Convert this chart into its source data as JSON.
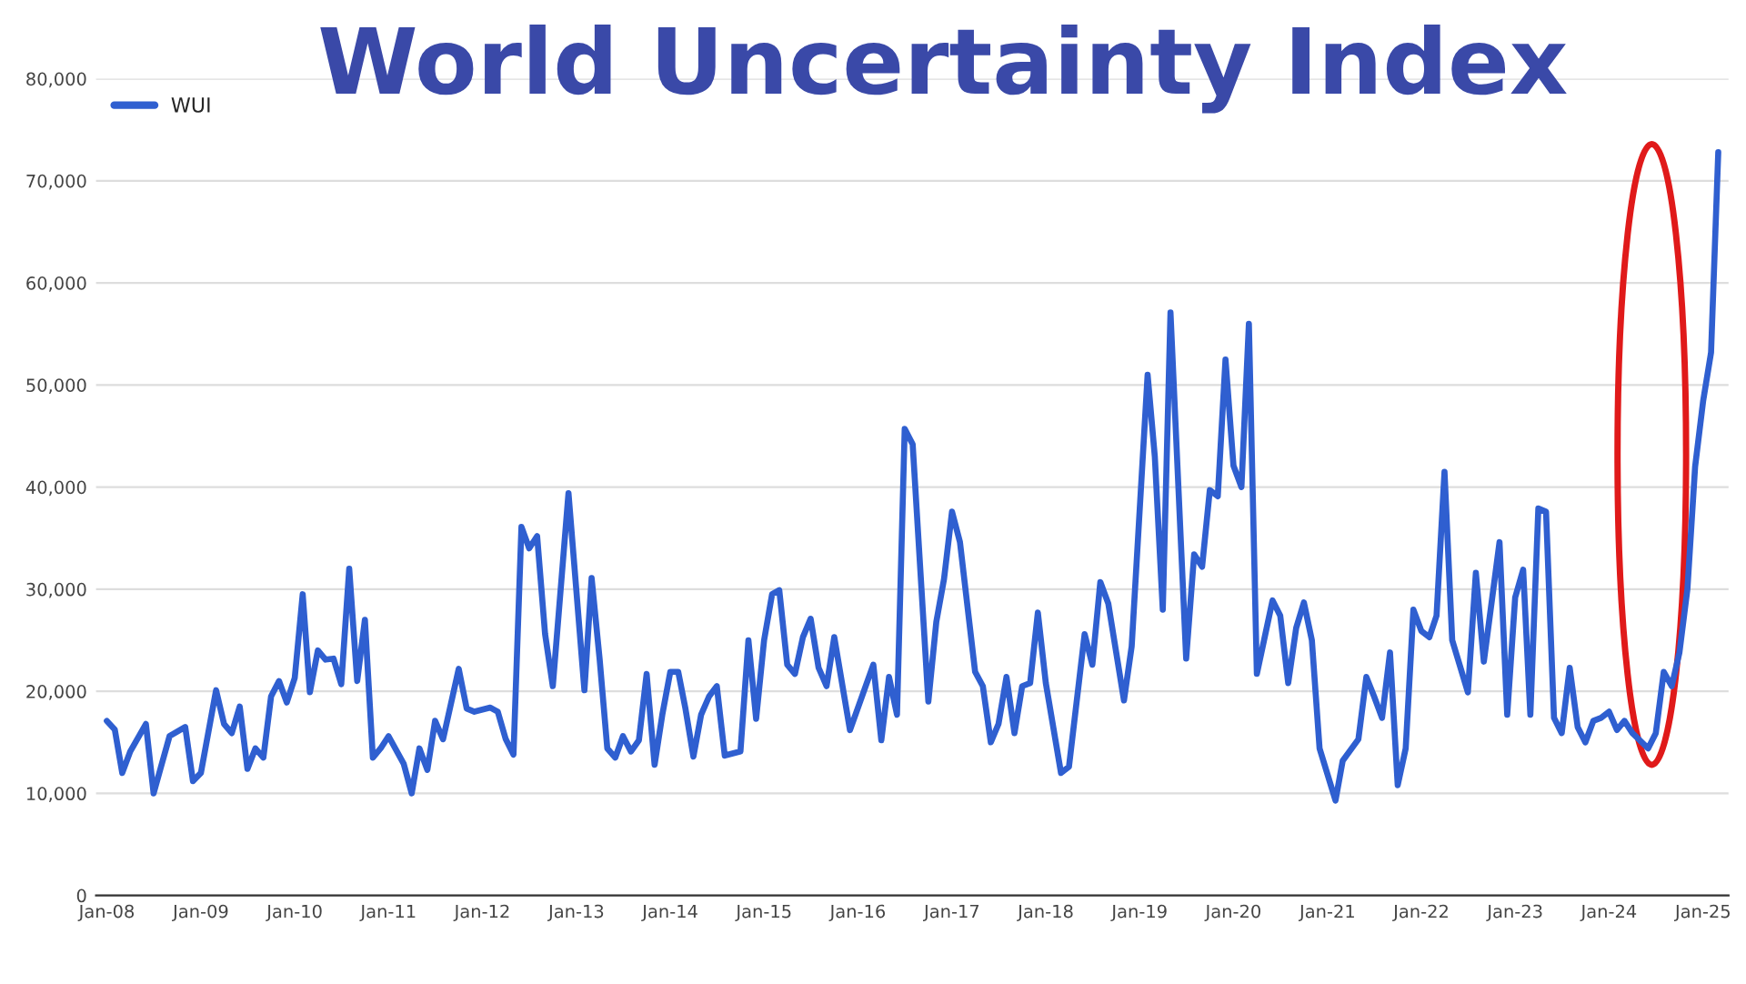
{
  "chart_data": {
    "type": "line",
    "title": "World Uncertainty Index",
    "x": [
      "2008-01",
      "2008-02",
      "2008-03",
      "2008-04",
      "2008-06",
      "2008-07",
      "2008-08",
      "2008-09",
      "2008-11",
      "2008-12",
      "2009-01",
      "2009-03",
      "2009-04",
      "2009-05",
      "2009-06",
      "2009-07",
      "2009-08",
      "2009-09",
      "2009-10",
      "2009-11",
      "2009-12",
      "2010-01",
      "2010-02",
      "2010-03",
      "2010-04",
      "2010-05",
      "2010-06",
      "2010-07",
      "2010-08",
      "2010-09",
      "2010-10",
      "2010-11",
      "2010-12",
      "2011-01",
      "2011-03",
      "2011-04",
      "2011-05",
      "2011-06",
      "2011-07",
      "2011-08",
      "2011-10",
      "2011-11",
      "2011-12",
      "2012-02",
      "2012-03",
      "2012-04",
      "2012-05",
      "2012-06",
      "2012-07",
      "2012-08",
      "2012-09",
      "2012-10",
      "2012-12",
      "2013-02",
      "2013-03",
      "2013-04",
      "2013-05",
      "2013-06",
      "2013-07",
      "2013-08",
      "2013-09",
      "2013-10",
      "2013-11",
      "2013-12",
      "2014-01",
      "2014-02",
      "2014-03",
      "2014-04",
      "2014-05",
      "2014-06",
      "2014-07",
      "2014-08",
      "2014-10",
      "2014-11",
      "2014-12",
      "2015-01",
      "2015-02",
      "2015-03",
      "2015-04",
      "2015-05",
      "2015-06",
      "2015-07",
      "2015-08",
      "2015-09",
      "2015-10",
      "2015-12",
      "2016-03",
      "2016-04",
      "2016-05",
      "2016-06",
      "2016-07",
      "2016-08",
      "2016-10",
      "2016-11",
      "2016-12",
      "2017-01",
      "2017-02",
      "2017-04",
      "2017-05",
      "2017-06",
      "2017-07",
      "2017-08",
      "2017-09",
      "2017-10",
      "2017-11",
      "2017-12",
      "2018-01",
      "2018-03",
      "2018-04",
      "2018-06",
      "2018-07",
      "2018-08",
      "2018-09",
      "2018-11",
      "2018-12",
      "2019-02",
      "2019-03",
      "2019-04",
      "2019-05",
      "2019-07",
      "2019-08",
      "2019-09",
      "2019-10",
      "2019-11",
      "2019-12",
      "2020-01",
      "2020-02",
      "2020-03",
      "2020-04",
      "2020-06",
      "2020-07",
      "2020-08",
      "2020-09",
      "2020-10",
      "2020-11",
      "2020-12",
      "2021-02",
      "2021-03",
      "2021-05",
      "2021-06",
      "2021-07",
      "2021-08",
      "2021-09",
      "2021-10",
      "2021-11",
      "2021-12",
      "2022-01",
      "2022-02",
      "2022-03",
      "2022-04",
      "2022-05",
      "2022-07",
      "2022-08",
      "2022-09",
      "2022-11",
      "2022-12",
      "2023-01",
      "2023-02",
      "2023-03",
      "2023-04",
      "2023-05",
      "2023-06",
      "2023-07",
      "2023-08",
      "2023-09",
      "2023-10",
      "2023-11",
      "2023-12",
      "2024-01",
      "2024-02",
      "2024-03",
      "2024-04",
      "2024-06",
      "2024-07",
      "2024-08",
      "2024-09",
      "2024-10",
      "2024-11",
      "2024-12",
      "2025-01",
      "2025-02",
      "2025-03"
    ],
    "series": [
      {
        "name": "WUI",
        "color": "#2f5fd0",
        "values": [
          17100,
          16250,
          12000,
          14100,
          16800,
          10000,
          12800,
          15600,
          16500,
          11200,
          12000,
          20100,
          16800,
          15900,
          18500,
          12400,
          14400,
          13500,
          19500,
          21000,
          18900,
          21300,
          29500,
          19900,
          24000,
          23100,
          23200,
          20700,
          32000,
          21000,
          27000,
          13500,
          14400,
          15600,
          12900,
          10000,
          14400,
          12300,
          17100,
          15300,
          22200,
          18300,
          18000,
          18400,
          18000,
          15300,
          13800,
          36100,
          34000,
          35200,
          25600,
          20500,
          39400,
          20100,
          31100,
          23200,
          14400,
          13500,
          15600,
          14100,
          15200,
          21700,
          12800,
          17700,
          21900,
          21900,
          18300,
          13600,
          17700,
          19500,
          20500,
          13700,
          14100,
          25000,
          17300,
          25000,
          29500,
          29900,
          22600,
          21700,
          25300,
          27100,
          22300,
          20500,
          25300,
          16200,
          22600,
          15200,
          21400,
          17700,
          45700,
          44200,
          19000,
          26800,
          31000,
          37600,
          34600,
          21900,
          20500,
          15000,
          16800,
          21400,
          15900,
          20500,
          20800,
          27700,
          20800,
          12000,
          12600,
          25600,
          22600,
          30700,
          28600,
          19100,
          24400,
          51000,
          43000,
          28000,
          57100,
          23200,
          33400,
          32200,
          39700,
          39100,
          52500,
          42100,
          40000,
          56000,
          21700,
          28900,
          27400,
          20800,
          26200,
          28700,
          25000,
          14400,
          9300,
          13200,
          15300,
          21400,
          19500,
          17400,
          23800,
          10800,
          14400,
          28000,
          25900,
          25300,
          27400,
          41500,
          25000,
          19900,
          31600,
          22900,
          34600,
          17700,
          29200,
          31900,
          17700,
          37900,
          37600,
          17400,
          15900,
          22300,
          16500,
          15000,
          17100,
          17400,
          18000,
          16200,
          17100,
          15900,
          14400,
          15900,
          21900,
          20500,
          23800,
          30000,
          42000,
          48400,
          53200,
          72800
        ]
      }
    ],
    "xlim": [
      "2007-11-20",
      "2025-04-10"
    ],
    "xticks": [
      {
        "value": "2008-01",
        "label": "Jan-08"
      },
      {
        "value": "2009-01",
        "label": "Jan-09"
      },
      {
        "value": "2010-01",
        "label": "Jan-10"
      },
      {
        "value": "2011-01",
        "label": "Jan-11"
      },
      {
        "value": "2012-01",
        "label": "Jan-12"
      },
      {
        "value": "2013-01",
        "label": "Jan-13"
      },
      {
        "value": "2014-01",
        "label": "Jan-14"
      },
      {
        "value": "2015-01",
        "label": "Jan-15"
      },
      {
        "value": "2016-01",
        "label": "Jan-16"
      },
      {
        "value": "2017-01",
        "label": "Jan-17"
      },
      {
        "value": "2018-01",
        "label": "Jan-18"
      },
      {
        "value": "2019-01",
        "label": "Jan-19"
      },
      {
        "value": "2020-01",
        "label": "Jan-20"
      },
      {
        "value": "2021-01",
        "label": "Jan-21"
      },
      {
        "value": "2022-01",
        "label": "Jan-22"
      },
      {
        "value": "2023-01",
        "label": "Jan-23"
      },
      {
        "value": "2024-01",
        "label": "Jan-24"
      },
      {
        "value": "2025-01",
        "label": "Jan-25"
      }
    ],
    "ylim": [
      0,
      80000
    ],
    "yticks": [
      0,
      {
        "value": 10000,
        "label": "10,000"
      },
      {
        "value": 20000,
        "label": "20,000"
      },
      {
        "value": 30000,
        "label": "30,000"
      },
      {
        "value": 40000,
        "label": "40,000"
      },
      {
        "value": 50000,
        "label": "50,000"
      },
      {
        "value": 60000,
        "label": "60,000"
      },
      {
        "value": 70000,
        "label": "70,000"
      },
      {
        "value": 80000,
        "label": "80,000"
      }
    ],
    "grid": "y",
    "legend": "top left",
    "marker": "none",
    "line_style": "solid"
  }
}
